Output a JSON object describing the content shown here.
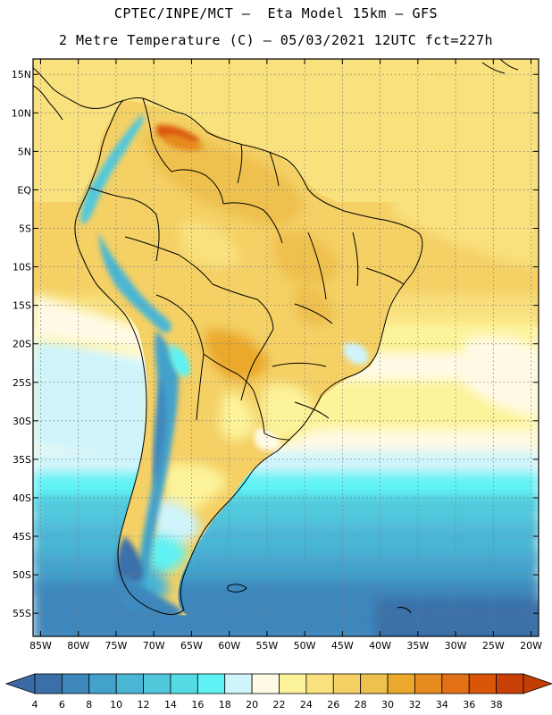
{
  "header": {
    "line1": "CPTEC/INPE/MCT –  Eta Model 15km – GFS",
    "line2": "2 Metre Temperature (C) – 05/03/2021 12UTC fct=227h"
  },
  "map": {
    "region": "South America",
    "lon_range": [
      -86,
      -19
    ],
    "lat_range": [
      17,
      -58
    ],
    "lat_labels": [
      "15N",
      "10N",
      "5N",
      "EQ",
      "5S",
      "10S",
      "15S",
      "20S",
      "25S",
      "30S",
      "35S",
      "40S",
      "45S",
      "50S",
      "55S"
    ],
    "lat_values": [
      15,
      10,
      5,
      0,
      -5,
      -10,
      -15,
      -20,
      -25,
      -30,
      -35,
      -40,
      -45,
      -50,
      -55
    ],
    "lon_labels": [
      "85W",
      "80W",
      "75W",
      "70W",
      "65W",
      "60W",
      "55W",
      "50W",
      "45W",
      "40W",
      "35W",
      "30W",
      "25W",
      "20W"
    ],
    "lon_values": [
      -85,
      -80,
      -75,
      -70,
      -65,
      -60,
      -55,
      -50,
      -45,
      -40,
      -35,
      -30,
      -25,
      -20
    ]
  },
  "colorbar": {
    "labels": [
      "4",
      "6",
      "8",
      "10",
      "12",
      "14",
      "16",
      "18",
      "20",
      "22",
      "24",
      "26",
      "28",
      "30",
      "32",
      "34",
      "36",
      "38"
    ],
    "colors": [
      "#3b6fa8",
      "#3d87bd",
      "#42a2cb",
      "#4ab6d6",
      "#51c8dc",
      "#55dbe6",
      "#5ff2f4",
      "#cff4fb",
      "#fffae6",
      "#fdf39a",
      "#f9e17e",
      "#f4d065",
      "#eec04e",
      "#eba82c",
      "#e78a1f",
      "#e27016",
      "#d95608",
      "#c84006"
    ],
    "left_arrow_color": "#3a6ba6",
    "right_arrow_color": "#c43d04"
  }
}
